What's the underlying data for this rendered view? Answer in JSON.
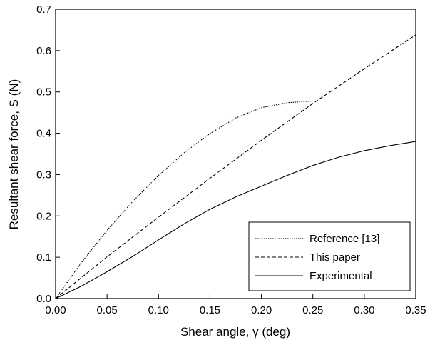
{
  "chart_data": {
    "type": "line",
    "title": "",
    "xlabel": "Shear angle, γ (deg)",
    "ylabel": "Resultant shear force, S (N)",
    "xlim": [
      0,
      0.35
    ],
    "ylim": [
      0,
      0.7
    ],
    "x_ticks": [
      "0.00",
      "0.05",
      "0.10",
      "0.15",
      "0.20",
      "0.25",
      "0.30",
      "0.35"
    ],
    "y_ticks": [
      "0.0",
      "0.1",
      "0.2",
      "0.3",
      "0.4",
      "0.5",
      "0.6",
      "0.7"
    ],
    "grid": false,
    "legend_position": "bottom-right",
    "series": [
      {
        "name": "Reference [13]",
        "style": "dotted",
        "x": [
          0,
          0.025,
          0.05,
          0.075,
          0.1,
          0.125,
          0.15,
          0.175,
          0.2,
          0.225,
          0.25
        ],
        "y": [
          0,
          0.087,
          0.165,
          0.235,
          0.298,
          0.353,
          0.399,
          0.437,
          0.462,
          0.474,
          0.478
        ]
      },
      {
        "name": "This paper",
        "style": "dashed",
        "x": [
          0,
          0.05,
          0.1,
          0.15,
          0.2,
          0.25,
          0.3,
          0.35
        ],
        "y": [
          0,
          0.101,
          0.197,
          0.291,
          0.383,
          0.472,
          0.556,
          0.638
        ]
      },
      {
        "name": "Experimental",
        "style": "solid",
        "x": [
          0,
          0.025,
          0.05,
          0.075,
          0.1,
          0.125,
          0.15,
          0.175,
          0.2,
          0.225,
          0.25,
          0.275,
          0.3,
          0.325,
          0.35
        ],
        "y": [
          0,
          0.03,
          0.065,
          0.102,
          0.142,
          0.181,
          0.216,
          0.246,
          0.272,
          0.298,
          0.322,
          0.342,
          0.358,
          0.37,
          0.38
        ]
      }
    ]
  }
}
